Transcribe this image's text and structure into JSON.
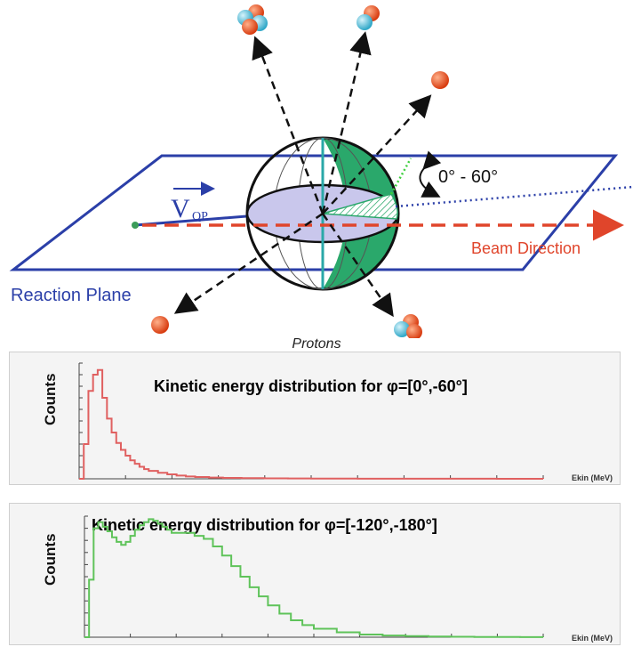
{
  "diagram": {
    "velocity_label": "V",
    "velocity_subscript": "QP",
    "angle_label": "0° - 60°",
    "beam_label": "Beam Direction",
    "plane_label": "Reaction Plane",
    "colors": {
      "plane": "#2b3fa8",
      "beam": "#e0452b",
      "sphere_green": "#2aa86b",
      "disk": "#c9c7ec",
      "proton": "#e8531d",
      "neutron": "#5bc3dc"
    }
  },
  "protons_title": "Protons",
  "chart_data": [
    {
      "type": "histogram",
      "title": "Kinetic energy distribution for φ=[0°,-60°]",
      "ylabel": "Counts",
      "xlabel": "Ekin (MeV)",
      "series": [
        {
          "color": "#e06060"
        }
      ],
      "x": [
        0,
        2,
        4,
        6,
        8,
        10,
        12,
        14,
        16,
        18,
        20,
        22,
        24,
        26,
        28,
        30,
        34,
        38,
        42,
        46,
        50,
        56,
        62,
        70,
        80,
        90,
        100,
        120,
        140,
        160,
        180,
        200
      ],
      "values": [
        0,
        1500,
        3800,
        4500,
        4700,
        3500,
        2600,
        2000,
        1550,
        1250,
        1000,
        800,
        650,
        520,
        420,
        340,
        260,
        190,
        140,
        100,
        75,
        55,
        40,
        28,
        20,
        14,
        10,
        7,
        5,
        3,
        2,
        1
      ],
      "xlim": [
        0,
        200
      ],
      "ylim": [
        0,
        5000
      ]
    },
    {
      "type": "histogram",
      "title": "Kinetic energy distribution for φ=[-120°,-180°]",
      "ylabel": "Counts",
      "xlabel": "Ekin (MeV)",
      "series": [
        {
          "color": "#5fc35a"
        }
      ],
      "x": [
        0,
        2,
        4,
        6,
        8,
        10,
        12,
        14,
        16,
        18,
        20,
        22,
        24,
        26,
        28,
        30,
        32,
        34,
        36,
        38,
        40,
        44,
        48,
        52,
        56,
        60,
        64,
        68,
        72,
        76,
        80,
        85,
        90,
        95,
        100,
        110,
        120,
        130,
        140,
        150,
        160,
        170,
        180,
        190,
        200
      ],
      "values": [
        0,
        1900,
        3600,
        3800,
        3650,
        3500,
        3300,
        3150,
        3050,
        3150,
        3350,
        3550,
        3700,
        3800,
        3900,
        3850,
        3750,
        3650,
        3550,
        3450,
        3450,
        3450,
        3350,
        3250,
        3000,
        2700,
        2350,
        2000,
        1650,
        1350,
        1050,
        780,
        560,
        400,
        280,
        160,
        90,
        55,
        35,
        22,
        14,
        9,
        6,
        4,
        2
      ],
      "xlim": [
        0,
        200
      ],
      "ylim": [
        0,
        4000
      ]
    }
  ]
}
